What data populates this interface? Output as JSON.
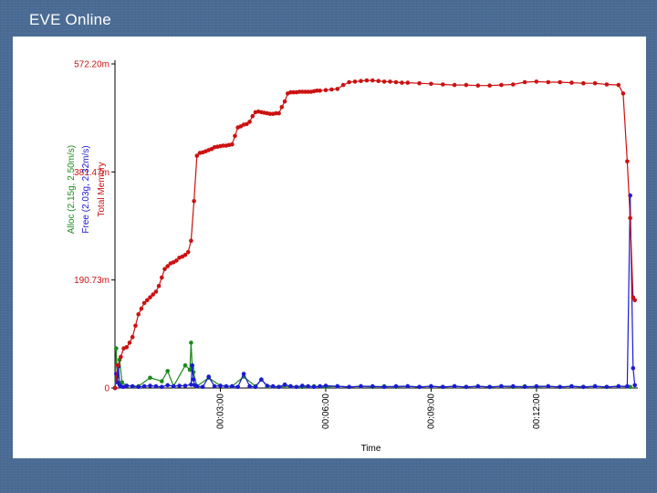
{
  "title": "EVE Online",
  "colors": {
    "total": "#cc1111",
    "free": "#1a1ad6",
    "alloc": "#1a8a1a",
    "background": "#4a6b94"
  },
  "chart_data": {
    "type": "line",
    "xlabel": "Time",
    "x_ticks": [
      {
        "value": 180,
        "label": "00:03:00"
      },
      {
        "value": 360,
        "label": "00:06:00"
      },
      {
        "value": 540,
        "label": "00:09:00"
      },
      {
        "value": 720,
        "label": "00:12:00"
      }
    ],
    "y_ticks": [
      {
        "value": 0,
        "label": "0"
      },
      {
        "value": 190.73,
        "label": "190.73m"
      },
      {
        "value": 381.47,
        "label": "381.47m"
      },
      {
        "value": 572.2,
        "label": "572.20m"
      }
    ],
    "xlim": [
      0,
      890
    ],
    "ylim": [
      0,
      572.2
    ],
    "axis_titles": [
      {
        "text": "Total Memory",
        "series": "total"
      },
      {
        "text": "Free (2.03g, 2.32m/s)",
        "series": "free"
      },
      {
        "text": "Alloc (2.15g, 2.50m/s)",
        "series": "alloc"
      }
    ],
    "series": [
      {
        "key": "total",
        "x": [
          0,
          5,
          10,
          15,
          20,
          25,
          30,
          35,
          40,
          45,
          50,
          55,
          60,
          65,
          70,
          75,
          80,
          85,
          90,
          95,
          100,
          105,
          110,
          115,
          120,
          125,
          130,
          135,
          140,
          145,
          150,
          155,
          160,
          165,
          170,
          175,
          180,
          185,
          190,
          195,
          200,
          205,
          210,
          215,
          220,
          225,
          230,
          235,
          240,
          245,
          250,
          255,
          260,
          265,
          270,
          275,
          280,
          285,
          290,
          295,
          300,
          305,
          310,
          315,
          320,
          325,
          330,
          335,
          340,
          345,
          350,
          360,
          370,
          380,
          390,
          400,
          410,
          420,
          430,
          440,
          450,
          460,
          470,
          480,
          490,
          500,
          520,
          540,
          560,
          580,
          600,
          620,
          640,
          660,
          680,
          700,
          720,
          740,
          760,
          780,
          800,
          820,
          840,
          860,
          868,
          875,
          880,
          885,
          888
        ],
        "values": [
          0,
          40,
          55,
          70,
          72,
          80,
          90,
          110,
          130,
          140,
          150,
          155,
          160,
          165,
          170,
          180,
          195,
          210,
          215,
          220,
          222,
          225,
          230,
          232,
          235,
          240,
          260,
          330,
          410,
          415,
          416,
          418,
          420,
          422,
          425,
          426,
          427,
          428,
          428,
          429,
          430,
          445,
          460,
          462,
          465,
          466,
          470,
          480,
          487,
          488,
          487,
          486,
          485,
          484,
          484,
          485,
          485,
          496,
          506,
          520,
          522,
          522,
          522,
          523,
          523,
          523,
          523,
          523,
          524,
          525,
          525,
          526,
          527,
          528,
          535,
          540,
          541,
          542,
          543,
          543,
          542,
          541,
          541,
          540,
          539,
          539,
          538,
          537,
          536,
          535,
          535,
          534,
          534,
          535,
          536,
          540,
          541,
          540,
          540,
          539,
          538,
          538,
          536,
          535,
          520,
          400,
          300,
          160,
          155
        ]
      },
      {
        "key": "free",
        "x": [
          0,
          2,
          4,
          6,
          8,
          10,
          14,
          20,
          30,
          40,
          50,
          60,
          70,
          80,
          90,
          100,
          110,
          120,
          130,
          132,
          134,
          136,
          140,
          150,
          160,
          170,
          180,
          190,
          200,
          210,
          220,
          230,
          240,
          250,
          260,
          270,
          280,
          290,
          300,
          310,
          320,
          330,
          340,
          350,
          360,
          380,
          400,
          420,
          440,
          460,
          480,
          500,
          520,
          540,
          560,
          580,
          600,
          620,
          640,
          660,
          680,
          700,
          720,
          740,
          760,
          780,
          800,
          820,
          840,
          860,
          875,
          880,
          885,
          888
        ],
        "values": [
          0,
          25,
          10,
          38,
          5,
          3,
          2,
          4,
          3,
          2,
          3,
          4,
          3,
          2,
          5,
          3,
          4,
          4,
          6,
          40,
          15,
          5,
          3,
          2,
          20,
          3,
          4,
          3,
          3,
          2,
          25,
          3,
          2,
          15,
          4,
          3,
          2,
          6,
          3,
          2,
          4,
          3,
          2,
          3,
          4,
          3,
          2,
          3,
          3,
          2,
          3,
          3,
          2,
          3,
          2,
          3,
          2,
          3,
          2,
          3,
          3,
          2,
          3,
          3,
          2,
          3,
          2,
          3,
          2,
          3,
          3,
          340,
          35,
          5
        ]
      },
      {
        "key": "alloc",
        "x": [
          0,
          2,
          4,
          8,
          12,
          20,
          40,
          60,
          80,
          90,
          100,
          120,
          128,
          130,
          132,
          134,
          140,
          160,
          180,
          200,
          220,
          240,
          250,
          260,
          280,
          300,
          320,
          340,
          360,
          380,
          400,
          420,
          440,
          460,
          480,
          500,
          520,
          540,
          560,
          580,
          600,
          620,
          640,
          660,
          680,
          700,
          720,
          740,
          760,
          780,
          800,
          820,
          840,
          860,
          880
        ],
        "values": [
          0,
          70,
          20,
          50,
          10,
          4,
          3,
          18,
          12,
          30,
          3,
          40,
          32,
          80,
          35,
          28,
          3,
          18,
          4,
          3,
          20,
          3,
          15,
          3,
          2,
          3,
          2,
          3,
          2,
          3,
          2,
          3,
          2,
          3,
          2,
          3,
          2,
          3,
          2,
          3,
          2,
          3,
          2,
          3,
          2,
          3,
          2,
          3,
          2,
          3,
          2,
          3,
          2,
          3,
          2
        ]
      }
    ]
  }
}
